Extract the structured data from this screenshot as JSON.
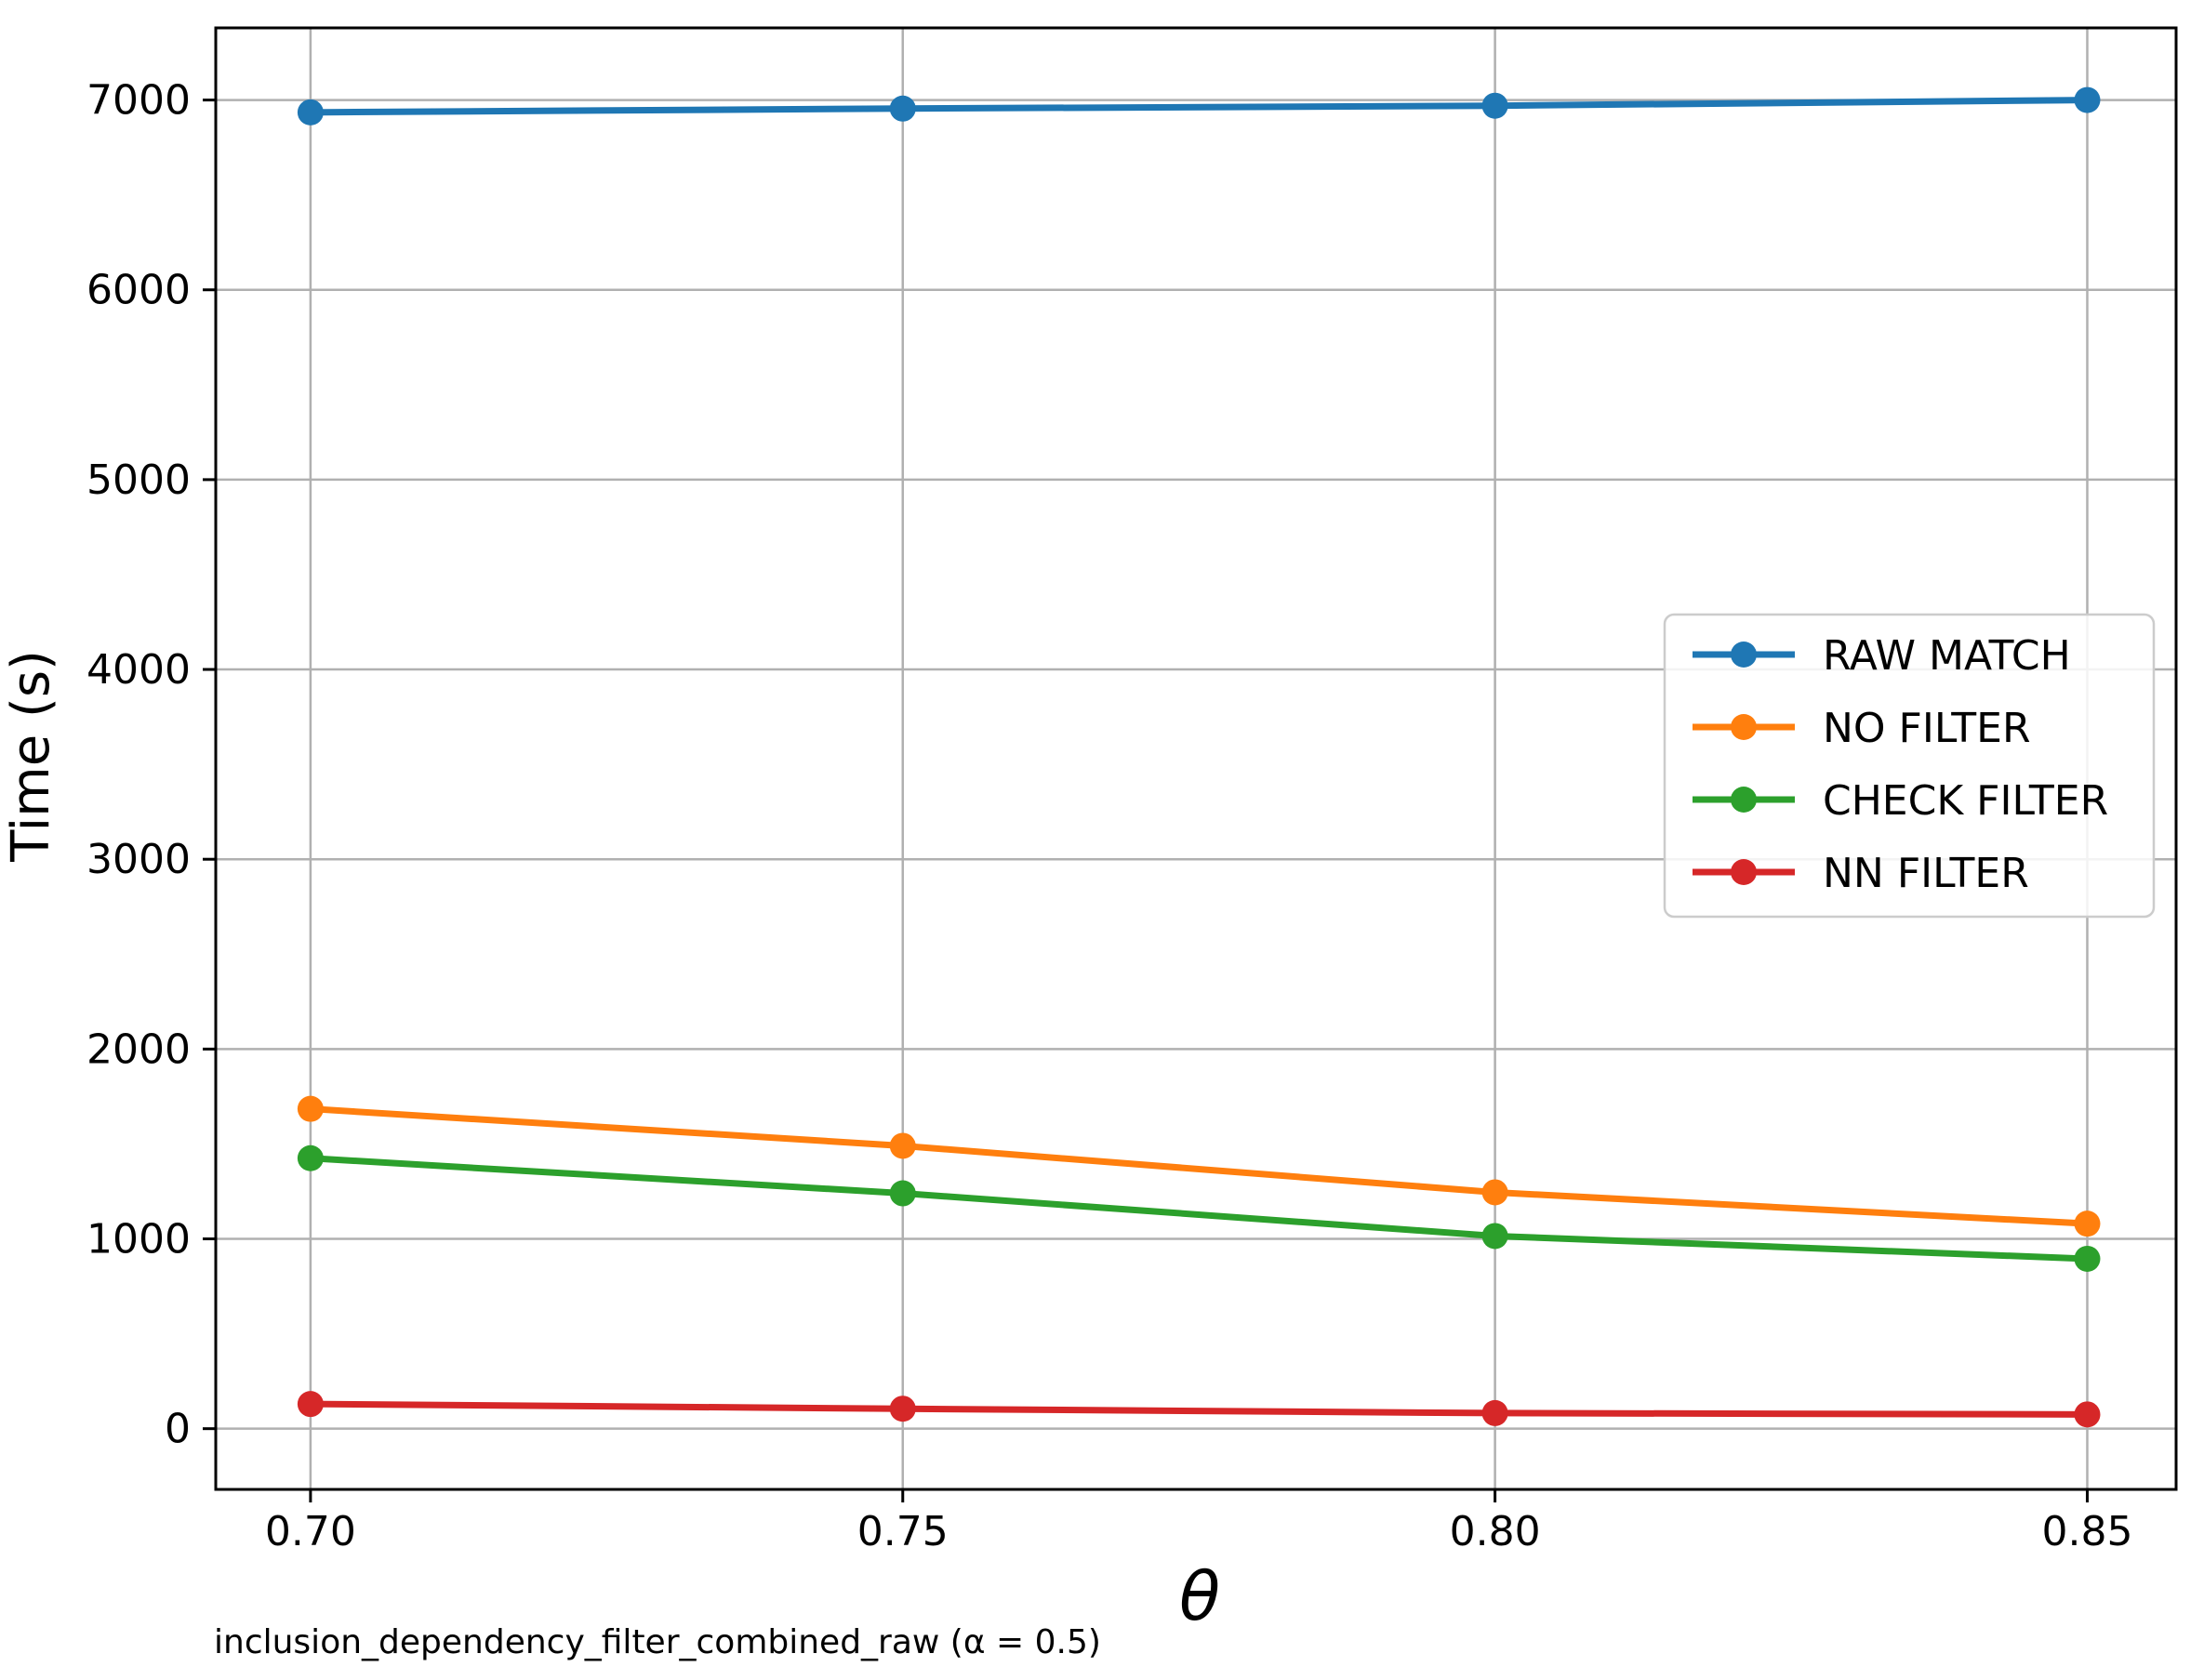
{
  "chart_data": {
    "type": "line",
    "x": [
      0.7,
      0.75,
      0.8,
      0.85
    ],
    "x_tick_labels": [
      "0.70",
      "0.75",
      "0.80",
      "0.85"
    ],
    "yticks": [
      0,
      1000,
      2000,
      3000,
      4000,
      5000,
      6000,
      7000
    ],
    "ytick_labels": [
      "0",
      "1000",
      "2000",
      "3000",
      "4000",
      "5000",
      "6000",
      "7000"
    ],
    "series": [
      {
        "name": "RAW MATCH",
        "color": "#1f77b4",
        "values": [
          6935,
          6955,
          6970,
          7000
        ]
      },
      {
        "name": "NO FILTER",
        "color": "#ff7f0e",
        "values": [
          1685,
          1490,
          1245,
          1080
        ]
      },
      {
        "name": "CHECK FILTER",
        "color": "#2ca02c",
        "values": [
          1425,
          1240,
          1015,
          895
        ]
      },
      {
        "name": "NN FILTER",
        "color": "#d62728",
        "values": [
          130,
          105,
          82,
          75
        ]
      }
    ],
    "title": "",
    "xlabel": "θ",
    "ylabel": "Time (s)",
    "caption": "inclusion_dependency_filter_combined_raw (α = 0.5)",
    "xlim": [
      0.692,
      0.8575
    ],
    "ylim": [
      -320,
      7380
    ],
    "grid": true,
    "legend": {
      "position": "center right",
      "entries": [
        "RAW MATCH",
        "NO FILTER",
        "CHECK FILTER",
        "NN FILTER"
      ]
    },
    "colors": {
      "grid": "#b0b0b0",
      "spine": "#000000",
      "background": "#ffffff",
      "legend_border": "#cccccc"
    }
  }
}
